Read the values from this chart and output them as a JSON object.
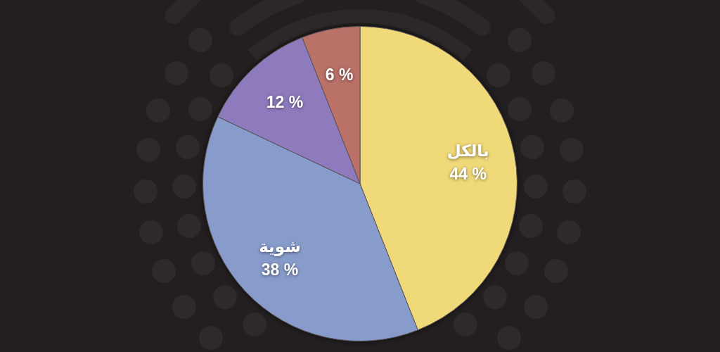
{
  "chart_data": {
    "type": "pie",
    "categories": [
      "بالكل",
      "شوية",
      null,
      null
    ],
    "values": [
      44,
      38,
      12,
      6
    ],
    "colors": [
      "#f0d978",
      "#889ccb",
      "#8e7bbd",
      "#b97168"
    ],
    "value_labels": [
      "44 %",
      "38 %",
      "12 %",
      "6 %"
    ]
  }
}
